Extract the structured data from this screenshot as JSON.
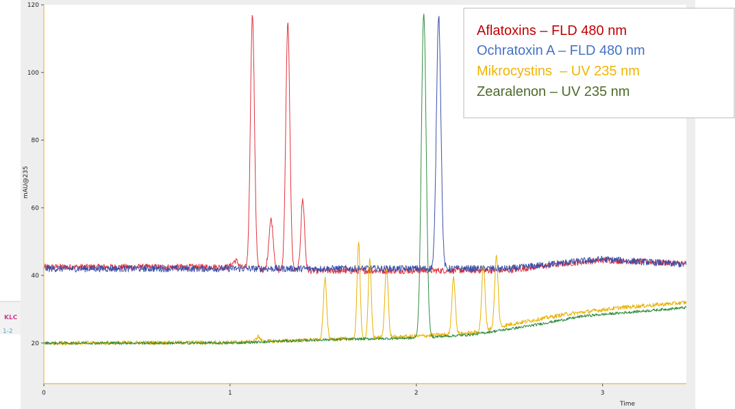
{
  "chart_data": {
    "type": "line",
    "title": "",
    "xlabel": "Time",
    "ylabel": "mAU@235",
    "xlim": [
      0,
      3.45
    ],
    "ylim": [
      8,
      120
    ],
    "x_ticks": [
      0,
      1,
      2,
      3
    ],
    "y_ticks": [
      20,
      40,
      60,
      80,
      100,
      120
    ],
    "x_tick_labels": [
      "0",
      "1",
      "2",
      "3"
    ],
    "y_tick_labels": [
      "20",
      "40",
      "60",
      "80",
      "100",
      "120"
    ],
    "grid": false,
    "legend_position": "top-right",
    "legend": [
      {
        "label": "Aflatoxins – FLD 480 nm",
        "color": "#c00000"
      },
      {
        "label": "Ochratoxin A – FLD 480 nm",
        "color": "#4472c4"
      },
      {
        "label": "Mikrocystins  – UV 235 nm",
        "color": "#f0b400"
      },
      {
        "label": "Zearalenon – UV 235 nm",
        "color": "#4d6b2a"
      }
    ],
    "series": [
      {
        "color": "#e0303a",
        "baseline": [
          [
            0,
            42.5
          ],
          [
            1.0,
            42.5
          ],
          [
            1.2,
            41.5
          ],
          [
            1.5,
            41.3
          ],
          [
            2.5,
            41.5
          ],
          [
            2.8,
            43.5
          ],
          [
            3.0,
            44.5
          ],
          [
            3.45,
            43.5
          ]
        ],
        "peaks": [
          [
            1.03,
            2,
            0.015
          ],
          [
            1.12,
            75,
            0.011
          ],
          [
            1.22,
            15,
            0.012
          ],
          [
            1.31,
            73,
            0.011
          ],
          [
            1.39,
            21,
            0.01
          ]
        ],
        "noise": 0.9
      },
      {
        "color": "#3a4fa8",
        "baseline": [
          [
            0,
            42.0
          ],
          [
            1.0,
            42.0
          ],
          [
            1.5,
            42.0
          ],
          [
            2.5,
            42.0
          ],
          [
            2.8,
            43.8
          ],
          [
            3.0,
            44.8
          ],
          [
            3.45,
            43.2
          ]
        ],
        "peaks": [
          [
            2.12,
            75,
            0.012
          ]
        ],
        "noise": 1.0
      },
      {
        "color": "#e8b000",
        "baseline": [
          [
            0,
            20.0
          ],
          [
            1.0,
            20.2
          ],
          [
            1.5,
            21.0
          ],
          [
            2.0,
            22.0
          ],
          [
            2.3,
            23.0
          ],
          [
            2.5,
            25.5
          ],
          [
            2.8,
            28.5
          ],
          [
            3.1,
            30.5
          ],
          [
            3.45,
            32.0
          ]
        ],
        "peaks": [
          [
            1.15,
            1.5,
            0.01
          ],
          [
            1.51,
            18,
            0.009
          ],
          [
            1.69,
            29,
            0.008
          ],
          [
            1.75,
            23,
            0.008
          ],
          [
            1.84,
            21,
            0.009
          ],
          [
            2.2,
            17,
            0.009
          ],
          [
            2.36,
            19,
            0.009
          ],
          [
            2.43,
            21,
            0.009
          ]
        ],
        "noise": 0.6
      },
      {
        "color": "#2e8b3e",
        "baseline": [
          [
            0,
            20.0
          ],
          [
            1.0,
            20.0
          ],
          [
            1.5,
            21.0
          ],
          [
            2.0,
            21.5
          ],
          [
            2.3,
            22.5
          ],
          [
            2.6,
            25.0
          ],
          [
            2.9,
            28.0
          ],
          [
            3.45,
            30.5
          ]
        ],
        "peaks": [
          [
            2.04,
            96,
            0.013
          ]
        ],
        "noise": 0.4
      }
    ]
  },
  "clipped_labels": {
    "line1": "KLC",
    "line1_color": "#d03c8c",
    "line2": "1-2",
    "line2_color": "#5ba3d0"
  }
}
